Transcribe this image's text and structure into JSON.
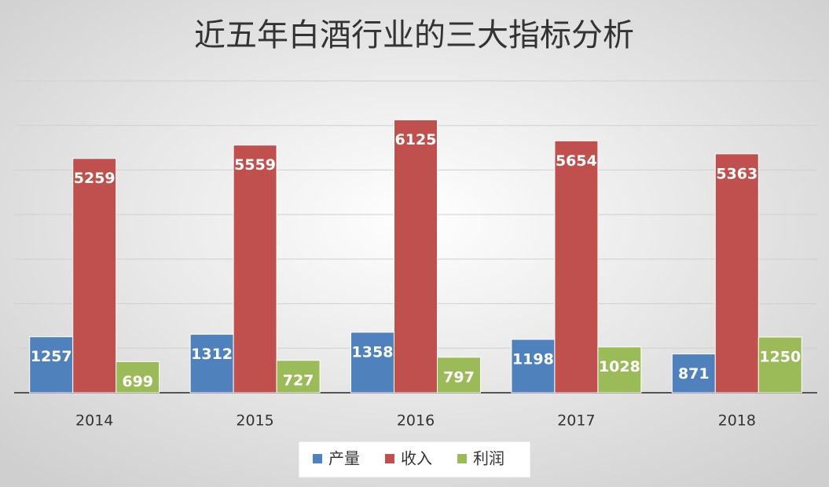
{
  "chart_data": {
    "type": "bar",
    "title": "近五年白酒行业的三大指标分析",
    "categories": [
      "2014",
      "2015",
      "2016",
      "2017",
      "2018"
    ],
    "series": [
      {
        "name": "产量",
        "color": "#4f81bd",
        "values": [
          1257,
          1312,
          1358,
          1198,
          871
        ]
      },
      {
        "name": "收入",
        "color": "#c0504d",
        "values": [
          5259,
          5559,
          6125,
          5654,
          5363
        ]
      },
      {
        "name": "利润",
        "color": "#9bbb59",
        "values": [
          699,
          727,
          797,
          1028,
          1250
        ]
      }
    ],
    "ylim": [
      0,
      7000
    ],
    "yticks": [
      0,
      1000,
      2000,
      3000,
      4000,
      5000,
      6000,
      7000
    ],
    "grid": true,
    "legend": "bottom"
  }
}
